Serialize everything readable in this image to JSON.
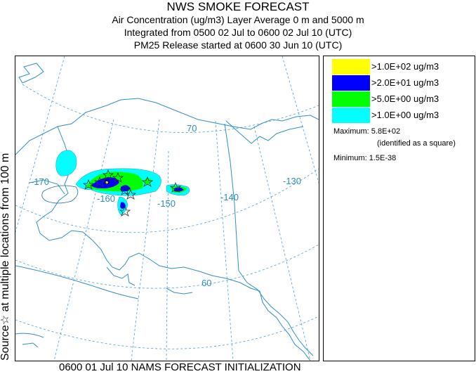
{
  "header": {
    "title": "NWS SMOKE FORECAST",
    "line2": "Air Concentration (ug/m3) Layer Average     0 m and  5000 m",
    "line3": "Integrated from 0500 02 Jul to 0600 02 Jul 10 (UTC)",
    "line4": "PM25 Release started at 0600 30 Jun 10 (UTC)"
  },
  "side_label": "Source☆ at multiple locations   from   100 m",
  "map": {
    "lat_labels": [
      "70",
      "60"
    ],
    "lon_labels": [
      "-170",
      "-160",
      "-150",
      "-140",
      "-130"
    ],
    "colors": {
      "coast": "#2f8fc9",
      "grid": "#4a9ed6",
      "border": "#2f8fc9",
      "level1": "#00ffff",
      "level2": "#00ff00",
      "level3": "#0000ff",
      "level4": "#ffff00"
    }
  },
  "legend": {
    "items": [
      {
        "color": "#ffff00",
        "label": ">1.0E+02 ug/m3"
      },
      {
        "color": "#0000ff",
        "label": ">2.0E+01 ug/m3"
      },
      {
        "color": "#00ff00",
        "label": ">5.0E+00 ug/m3"
      },
      {
        "color": "#00ffff",
        "label": ">1.0E+00 ug/m3"
      }
    ],
    "maximum_label": "Maximum: 5.8E+02",
    "maximum_note": "(identified as a square)",
    "minimum_label": "Minimum: 1.5E-38"
  },
  "footer": "0600 01 Jul 10 NAMS FORECAST INITIALIZATION"
}
